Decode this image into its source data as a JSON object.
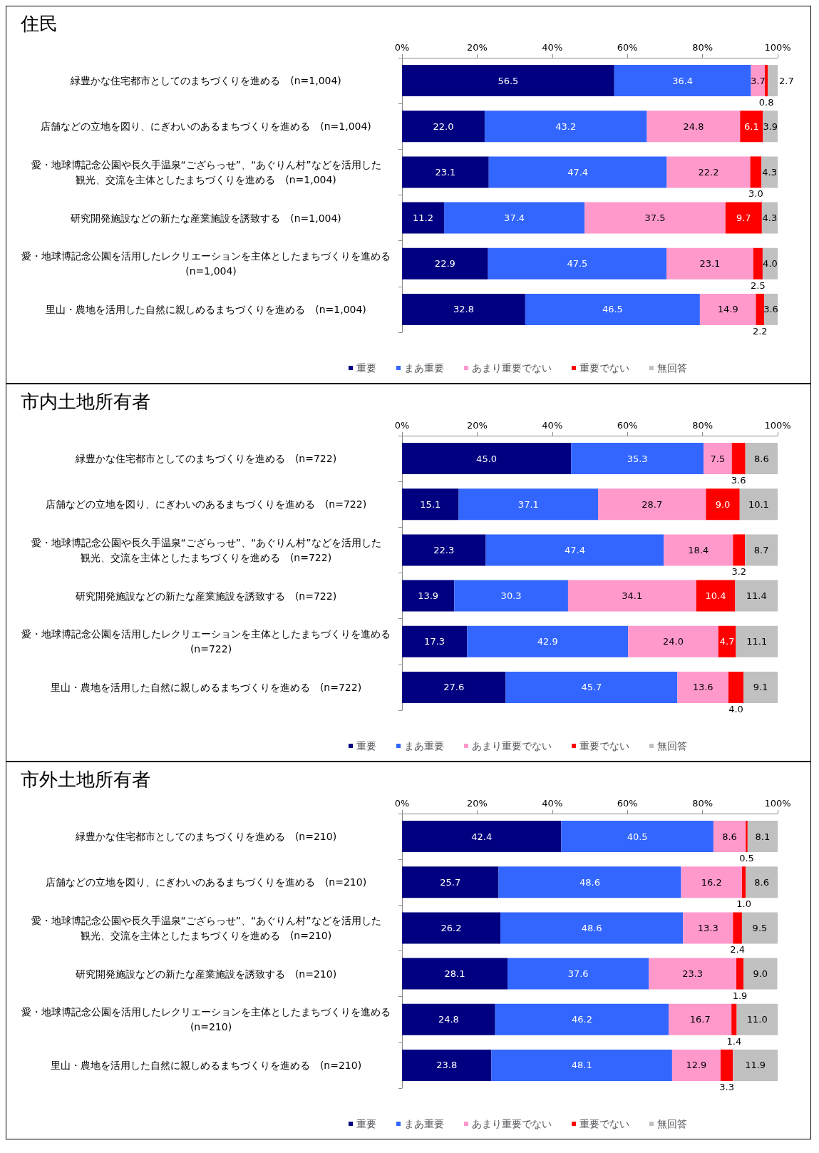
{
  "chart_data": [
    {
      "type": "bar",
      "title": "住民",
      "orientation": "horizontal",
      "stacked": true,
      "legend": "bottom",
      "grid": false,
      "xlim": [
        0,
        100
      ],
      "xticks": [
        {
          "value": 0,
          "label": "0%"
        },
        {
          "value": 20,
          "label": "20%"
        },
        {
          "value": 40,
          "label": "40%"
        },
        {
          "value": 60,
          "label": "60%"
        },
        {
          "value": 80,
          "label": "80%"
        },
        {
          "value": 100,
          "label": "100%"
        }
      ],
      "categories": [
        "緑豊かな住宅都市としてのまちづくりを進める　(n=1,004)",
        "店舗などの立地を図り、にぎわいのあるまちづくりを進める　(n=1,004)",
        "愛・地球博記念公園や長久手温泉“ござらっせ”、“あぐりん村”などを活用した観光、交流を主体としたまちづくりを進める　(n=1,004)",
        "研究開発施設などの新たな産業施設を誘致する　(n=1,004)",
        "愛・地球博記念公園を活用したレクリエーションを主体としたまちづくりを進める　(n=1,004)",
        "里山・農地を活用した自然に親しめるまちづくりを進める　(n=1,004)"
      ],
      "series": [
        {
          "name": "重要",
          "color": "#000080",
          "values": [
            56.5,
            22.0,
            23.1,
            11.2,
            22.9,
            32.8
          ],
          "value_labels": [
            "56.5",
            "22.0",
            "23.1",
            "11.2",
            "22.9",
            "32.8"
          ]
        },
        {
          "name": "まあ重要",
          "color": "#3366ff",
          "values": [
            36.4,
            43.2,
            47.4,
            37.4,
            47.5,
            46.5
          ],
          "value_labels": [
            "36.4",
            "43.2",
            "47.4",
            "37.4",
            "47.5",
            "46.5"
          ]
        },
        {
          "name": "あまり重要でない",
          "color": "#ff99cc",
          "values": [
            3.7,
            24.8,
            22.2,
            37.5,
            23.1,
            14.9
          ],
          "value_labels": [
            "3.7",
            "24.8",
            "22.2",
            "37.5",
            "23.1",
            "14.9"
          ]
        },
        {
          "name": "重要でない",
          "color": "#ff0000",
          "values": [
            0.8,
            6.1,
            3.0,
            9.7,
            2.5,
            2.2
          ],
          "value_labels": [
            "0.8",
            "6.1",
            "3.0",
            "9.7",
            "2.5",
            "2.2"
          ]
        },
        {
          "name": "無回答",
          "color": "#c0c0c0",
          "values": [
            2.7,
            3.9,
            4.3,
            4.3,
            4.0,
            3.6
          ],
          "value_labels": [
            "2.7",
            "3.9",
            "4.3",
            "4.3",
            "4.0",
            "3.6"
          ]
        }
      ]
    },
    {
      "type": "bar",
      "title": "市内土地所有者",
      "orientation": "horizontal",
      "stacked": true,
      "legend": "bottom",
      "grid": false,
      "xlim": [
        0,
        100
      ],
      "xticks": [
        {
          "value": 0,
          "label": "0%"
        },
        {
          "value": 20,
          "label": "20%"
        },
        {
          "value": 40,
          "label": "40%"
        },
        {
          "value": 60,
          "label": "60%"
        },
        {
          "value": 80,
          "label": "80%"
        },
        {
          "value": 100,
          "label": "100%"
        }
      ],
      "categories": [
        "緑豊かな住宅都市としてのまちづくりを進める　(n=722)",
        "店舗などの立地を図り、にぎわいのあるまちづくりを進める　(n=722)",
        "愛・地球博記念公園や長久手温泉“ござらっせ”、“あぐりん村”などを活用した観光、交流を主体としたまちづくりを進める　(n=722)",
        "研究開発施設などの新たな産業施設を誘致する　(n=722)",
        "愛・地球博記念公園を活用したレクリエーションを主体としたまちづくりを進める　(n=722)",
        "里山・農地を活用した自然に親しめるまちづくりを進める　(n=722)"
      ],
      "series": [
        {
          "name": "重要",
          "color": "#000080",
          "values": [
            45.0,
            15.1,
            22.3,
            13.9,
            17.3,
            27.6
          ],
          "value_labels": [
            "45.0",
            "15.1",
            "22.3",
            "13.9",
            "17.3",
            "27.6"
          ]
        },
        {
          "name": "まあ重要",
          "color": "#3366ff",
          "values": [
            35.3,
            37.1,
            47.4,
            30.3,
            42.9,
            45.7
          ],
          "value_labels": [
            "35.3",
            "37.1",
            "47.4",
            "30.3",
            "42.9",
            "45.7"
          ]
        },
        {
          "name": "あまり重要でない",
          "color": "#ff99cc",
          "values": [
            7.5,
            28.7,
            18.4,
            34.1,
            24.0,
            13.6
          ],
          "value_labels": [
            "7.5",
            "28.7",
            "18.4",
            "34.1",
            "24.0",
            "13.6"
          ]
        },
        {
          "name": "重要でない",
          "color": "#ff0000",
          "values": [
            3.6,
            9.0,
            3.2,
            10.4,
            4.7,
            4.0
          ],
          "value_labels": [
            "3.6",
            "9.0",
            "3.2",
            "10.4",
            "4.7",
            "4.0"
          ]
        },
        {
          "name": "無回答",
          "color": "#c0c0c0",
          "values": [
            8.6,
            10.1,
            8.7,
            11.4,
            11.1,
            9.1
          ],
          "value_labels": [
            "8.6",
            "10.1",
            "8.7",
            "11.4",
            "11.1",
            "9.1"
          ]
        }
      ]
    },
    {
      "type": "bar",
      "title": "市外土地所有者",
      "orientation": "horizontal",
      "stacked": true,
      "legend": "bottom",
      "grid": false,
      "xlim": [
        0,
        100
      ],
      "xticks": [
        {
          "value": 0,
          "label": "0%"
        },
        {
          "value": 20,
          "label": "20%"
        },
        {
          "value": 40,
          "label": "40%"
        },
        {
          "value": 60,
          "label": "60%"
        },
        {
          "value": 80,
          "label": "80%"
        },
        {
          "value": 100,
          "label": "100%"
        }
      ],
      "categories": [
        "緑豊かな住宅都市としてのまちづくりを進める　(n=210)",
        "店舗などの立地を図り、にぎわいのあるまちづくりを進める　(n=210)",
        "愛・地球博記念公園や長久手温泉“ござらっせ”、“あぐりん村”などを活用した観光、交流を主体としたまちづくりを進める　(n=210)",
        "研究開発施設などの新たな産業施設を誘致する　(n=210)",
        "愛・地球博記念公園を活用したレクリエーションを主体としたまちづくりを進める　(n=210)",
        "里山・農地を活用した自然に親しめるまちづくりを進める　(n=210)"
      ],
      "series": [
        {
          "name": "重要",
          "color": "#000080",
          "values": [
            42.4,
            25.7,
            26.2,
            28.1,
            24.8,
            23.8
          ],
          "value_labels": [
            "42.4",
            "25.7",
            "26.2",
            "28.1",
            "24.8",
            "23.8"
          ]
        },
        {
          "name": "まあ重要",
          "color": "#3366ff",
          "values": [
            40.5,
            48.6,
            48.6,
            37.6,
            46.2,
            48.1
          ],
          "value_labels": [
            "40.5",
            "48.6",
            "48.6",
            "37.6",
            "46.2",
            "48.1"
          ]
        },
        {
          "name": "あまり重要でない",
          "color": "#ff99cc",
          "values": [
            8.6,
            16.2,
            13.3,
            23.3,
            16.7,
            12.9
          ],
          "value_labels": [
            "8.6",
            "16.2",
            "13.3",
            "23.3",
            "16.7",
            "12.9"
          ]
        },
        {
          "name": "重要でない",
          "color": "#ff0000",
          "values": [
            0.5,
            1.0,
            2.4,
            1.9,
            1.4,
            3.3
          ],
          "value_labels": [
            "0.5",
            "1.0",
            "2.4",
            "1.9",
            "1.4",
            "3.3"
          ]
        },
        {
          "name": "無回答",
          "color": "#c0c0c0",
          "values": [
            8.1,
            8.6,
            9.5,
            9.0,
            11.0,
            11.9
          ],
          "value_labels": [
            "8.1",
            "8.6",
            "9.5",
            "9.0",
            "11.0",
            "11.9"
          ]
        }
      ]
    }
  ]
}
